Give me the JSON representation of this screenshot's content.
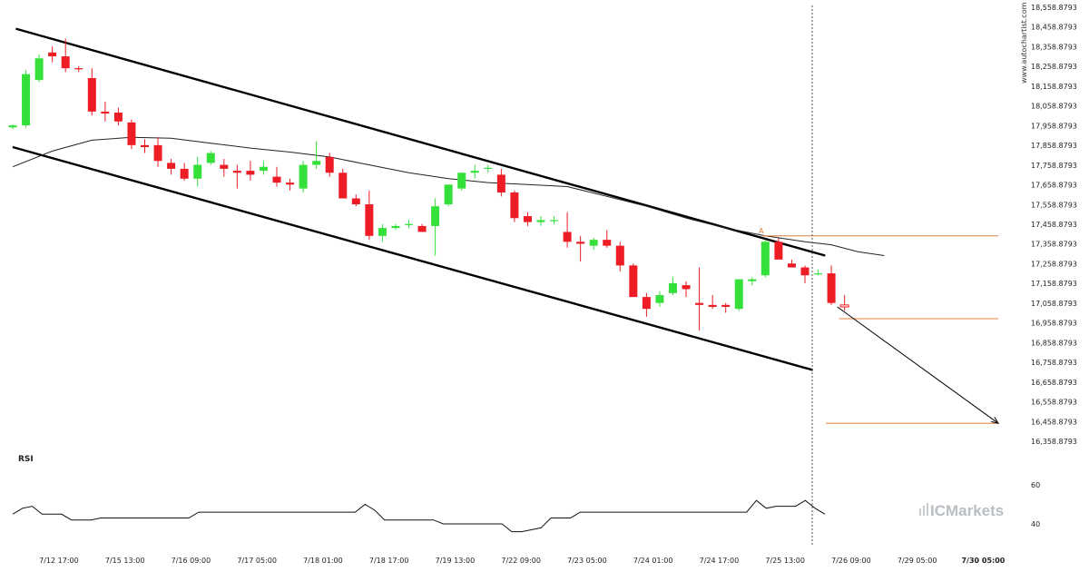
{
  "chart_data": {
    "type": "candlestick",
    "symbol_watermark": "www.autochartist.com",
    "brand": {
      "prefix": "IC",
      "suffix": "Markets"
    },
    "price_axis": {
      "min": 16358.8793,
      "max": 18558.8793,
      "ticks": [
        "18,558.8793",
        "18,458.8793",
        "18,358.8793",
        "18,258.8793",
        "18,158.8793",
        "18,058.8793",
        "17,958.8793",
        "17,858.8793",
        "17,758.8793",
        "17,658.8793",
        "17,558.8793",
        "17,458.8793",
        "17,358.8793",
        "17,258.8793",
        "17,158.8793",
        "17,058.8793",
        "16,958.8793",
        "16,858.8793",
        "16,758.8793",
        "16,658.8793",
        "16,558.8793",
        "16,458.8793",
        "16,358.8793"
      ]
    },
    "x_ticks": [
      {
        "label": "7/12 17:00",
        "bar": 3.5
      },
      {
        "label": "7/15 13:00",
        "bar": 8.5
      },
      {
        "label": "7/16 09:00",
        "bar": 13.5
      },
      {
        "label": "7/17 05:00",
        "bar": 18.5
      },
      {
        "label": "7/18 01:00",
        "bar": 23.5
      },
      {
        "label": "7/18 17:00",
        "bar": 28.5
      },
      {
        "label": "7/19 13:00",
        "bar": 33.5
      },
      {
        "label": "7/22 09:00",
        "bar": 38.5
      },
      {
        "label": "7/23 05:00",
        "bar": 43.5
      },
      {
        "label": "7/24 01:00",
        "bar": 48.5
      },
      {
        "label": "7/24 17:00",
        "bar": 53.5
      },
      {
        "label": "7/25 13:00",
        "bar": 58.5
      },
      {
        "label": "7/26 09:00",
        "bar": 63.5
      },
      {
        "label": "7/29 05:00",
        "bar": 68.5
      },
      {
        "label": "7/30 05:00",
        "bar": 73.5,
        "bold": true
      }
    ],
    "candles": [
      [
        17950,
        17965,
        17940,
        17960
      ],
      [
        17960,
        18240,
        17950,
        18220
      ],
      [
        18190,
        18320,
        18180,
        18300
      ],
      [
        18330,
        18360,
        18280,
        18310
      ],
      [
        18310,
        18400,
        18230,
        18250
      ],
      [
        18250,
        18260,
        18230,
        18245
      ],
      [
        18200,
        18250,
        18010,
        18030
      ],
      [
        18030,
        18080,
        17980,
        18020
      ],
      [
        18025,
        18050,
        17960,
        17980
      ],
      [
        17975,
        17990,
        17840,
        17860
      ],
      [
        17860,
        17890,
        17820,
        17850
      ],
      [
        17860,
        17900,
        17750,
        17780
      ],
      [
        17770,
        17790,
        17710,
        17740
      ],
      [
        17740,
        17770,
        17680,
        17690
      ],
      [
        17690,
        17800,
        17650,
        17760
      ],
      [
        17770,
        17830,
        17760,
        17820
      ],
      [
        17760,
        17790,
        17700,
        17740
      ],
      [
        17730,
        17760,
        17640,
        17720
      ],
      [
        17730,
        17780,
        17680,
        17710
      ],
      [
        17730,
        17780,
        17710,
        17750
      ],
      [
        17700,
        17750,
        17650,
        17670
      ],
      [
        17670,
        17690,
        17630,
        17660
      ],
      [
        17640,
        17780,
        17620,
        17760
      ],
      [
        17760,
        17880,
        17740,
        17780
      ],
      [
        17800,
        17820,
        17700,
        17720
      ],
      [
        17720,
        17740,
        17590,
        17590
      ],
      [
        17590,
        17610,
        17550,
        17560
      ],
      [
        17560,
        17630,
        17380,
        17400
      ],
      [
        17400,
        17460,
        17370,
        17440
      ],
      [
        17440,
        17460,
        17430,
        17450
      ],
      [
        17460,
        17480,
        17440,
        17460
      ],
      [
        17450,
        17460,
        17420,
        17420
      ],
      [
        17450,
        17590,
        17300,
        17550
      ],
      [
        17560,
        17660,
        17550,
        17660
      ],
      [
        17640,
        17720,
        17630,
        17720
      ],
      [
        17720,
        17760,
        17690,
        17730
      ],
      [
        17740,
        17760,
        17720,
        17745
      ],
      [
        17710,
        17740,
        17600,
        17620
      ],
      [
        17620,
        17630,
        17470,
        17490
      ],
      [
        17500,
        17520,
        17450,
        17470
      ],
      [
        17470,
        17500,
        17450,
        17480
      ],
      [
        17480,
        17500,
        17460,
        17480
      ],
      [
        17420,
        17520,
        17340,
        17370
      ],
      [
        17370,
        17400,
        17270,
        17360
      ],
      [
        17350,
        17390,
        17330,
        17380
      ],
      [
        17380,
        17430,
        17340,
        17350
      ],
      [
        17350,
        17370,
        17220,
        17250
      ],
      [
        17250,
        17260,
        17090,
        17090
      ],
      [
        17090,
        17110,
        16990,
        17030
      ],
      [
        17060,
        17120,
        17040,
        17100
      ],
      [
        17110,
        17190,
        17100,
        17160
      ],
      [
        17150,
        17170,
        17090,
        17130
      ],
      [
        17060,
        17240,
        16920,
        17050
      ],
      [
        17050,
        17100,
        17030,
        17040
      ],
      [
        17050,
        17060,
        17010,
        17040
      ],
      [
        17030,
        17180,
        17020,
        17180
      ],
      [
        17170,
        17190,
        17150,
        17180
      ],
      [
        17200,
        17380,
        17190,
        17370
      ],
      [
        17370,
        17390,
        17290,
        17280
      ],
      [
        17260,
        17280,
        17240,
        17240
      ],
      [
        17240,
        17250,
        17160,
        17200
      ],
      [
        17210,
        17230,
        17200,
        17210
      ],
      [
        17210,
        17250,
        17050,
        17060
      ],
      [
        17050,
        17100,
        17020,
        17040
      ]
    ],
    "moving_average": [
      [
        0,
        17750
      ],
      [
        3,
        17830
      ],
      [
        6,
        17885
      ],
      [
        9,
        17900
      ],
      [
        12,
        17895
      ],
      [
        15,
        17870
      ],
      [
        18,
        17845
      ],
      [
        21,
        17825
      ],
      [
        24,
        17800
      ],
      [
        27,
        17760
      ],
      [
        30,
        17720
      ],
      [
        33,
        17690
      ],
      [
        36,
        17670
      ],
      [
        39,
        17660
      ],
      [
        42,
        17650
      ],
      [
        45,
        17600
      ],
      [
        48,
        17550
      ],
      [
        51,
        17490
      ],
      [
        54,
        17440
      ],
      [
        57,
        17400
      ],
      [
        60,
        17370
      ],
      [
        62,
        17355
      ],
      [
        64,
        17320
      ],
      [
        66,
        17300
      ]
    ],
    "channel": {
      "upper": [
        [
          17.4,
          18450
        ],
        [
          909.3,
          17300
        ]
      ],
      "lower": [
        [
          13.9,
          17850
        ],
        [
          895.7,
          16720
        ]
      ]
    },
    "pattern_point_label": "A",
    "levels": [
      17400,
      16980,
      16450
    ],
    "projection": {
      "from_price": 17040,
      "to_price": 16450
    },
    "current_bar_marker": "7/30 05:00",
    "rsi": {
      "label": "RSI",
      "ticks": [
        60,
        40
      ],
      "values": [
        45,
        48,
        49,
        45,
        45,
        45,
        42,
        42,
        42,
        43,
        43,
        43,
        43,
        43,
        43,
        43,
        43,
        43,
        43,
        46,
        46,
        46,
        46,
        46,
        46,
        46,
        46,
        46,
        46,
        46,
        46,
        46,
        46,
        46,
        46,
        46,
        50,
        47,
        42,
        42,
        42,
        42,
        42,
        42,
        40,
        40,
        40,
        40,
        40,
        40,
        40,
        36,
        36,
        37,
        38,
        43,
        43,
        43,
        46,
        46,
        46,
        46,
        46,
        46,
        46,
        46,
        46,
        46,
        46,
        46,
        46,
        46,
        46,
        46,
        46,
        46,
        52,
        48,
        49,
        49,
        49,
        52,
        48,
        45
      ]
    }
  }
}
